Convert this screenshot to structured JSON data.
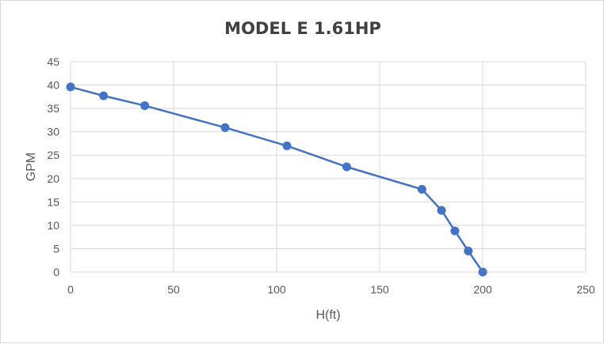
{
  "chart_data": {
    "type": "scatter",
    "title": "MODEL E 1.61HP",
    "xlabel": "H(ft)",
    "ylabel": "GPM",
    "xlim": [
      0,
      250
    ],
    "ylim": [
      0,
      45
    ],
    "xticks": [
      0,
      50,
      100,
      150,
      200,
      250
    ],
    "yticks": [
      0,
      5,
      10,
      15,
      20,
      25,
      30,
      35,
      40,
      45
    ],
    "grid": true,
    "legend": "none",
    "markers": true,
    "line": "straight",
    "color": "#4472C4",
    "points": [
      [
        0,
        39.6
      ],
      [
        16,
        37.7
      ],
      [
        36,
        35.6
      ],
      [
        75,
        30.9
      ],
      [
        105,
        27.0
      ],
      [
        134,
        22.5
      ],
      [
        170.5,
        17.7
      ],
      [
        180,
        13.2
      ],
      [
        186.5,
        8.8
      ],
      [
        193,
        4.5
      ],
      [
        200,
        0
      ]
    ]
  }
}
